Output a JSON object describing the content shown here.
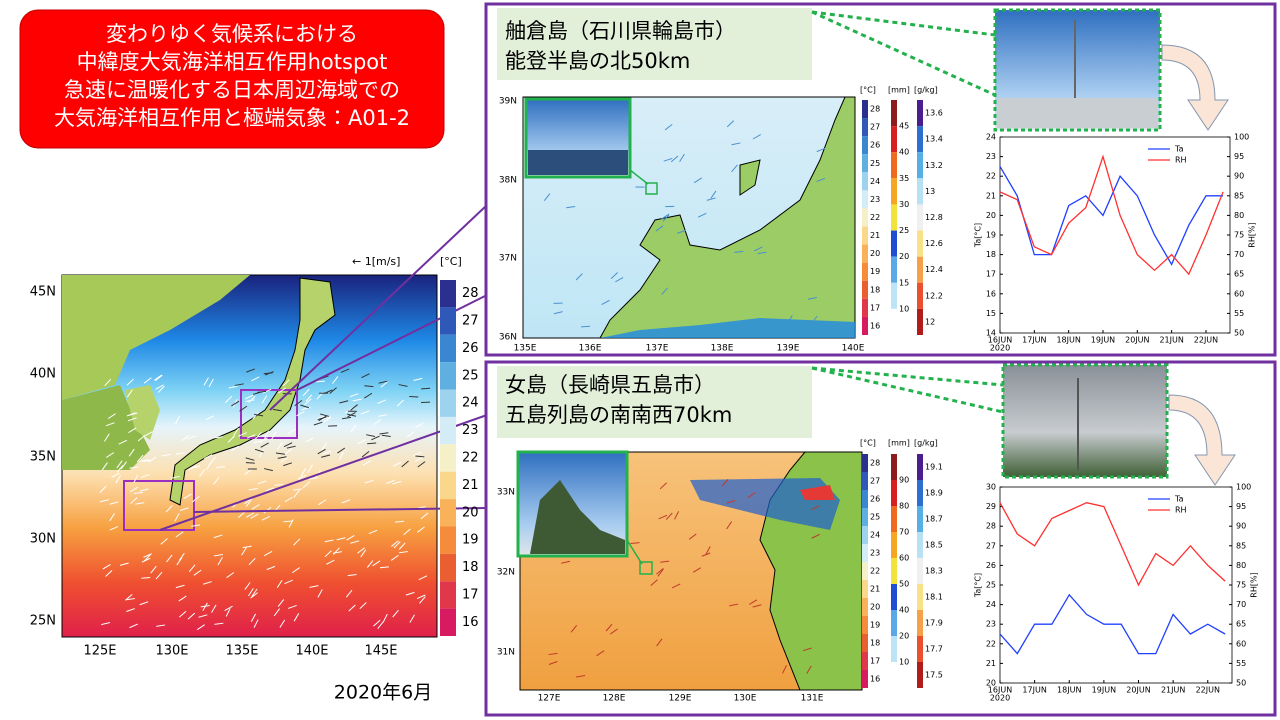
{
  "title_lines": [
    "変わりゆく気候系における",
    "中緯度大気海洋相互作用hotspot",
    "急速に温暖化する日本周辺海域での",
    "大気海洋相互作用と極端気象：A01-2"
  ],
  "main_map": {
    "vector_legend": "← 1[m/s]",
    "unit": "[°C]",
    "lat_ticks": [
      "45N",
      "40N",
      "35N",
      "30N",
      "25N"
    ],
    "lon_ticks": [
      "125E",
      "130E",
      "135E",
      "140E",
      "145E"
    ],
    "colorbar_ticks": [
      28,
      27,
      26,
      25,
      24,
      23,
      22,
      21,
      20,
      19,
      18,
      17,
      16
    ]
  },
  "date": "2020年6月",
  "panels": [
    {
      "name": "舳倉島（石川県輪島市）",
      "location": "能登半島の北50km",
      "map": {
        "lat_ticks": [
          "39N",
          "38N",
          "37N",
          "36N"
        ],
        "lon_ticks": [
          "135E",
          "136E",
          "137E",
          "138E",
          "139E",
          "140E"
        ],
        "sst_unit": "[°C]",
        "rain_unit": "[mm]",
        "q_unit": "[g/kg]",
        "sst_ticks": [
          28,
          27,
          26,
          25,
          24,
          23,
          22,
          21,
          20,
          19,
          18,
          17,
          16
        ],
        "rain_ticks": [
          45,
          40,
          35,
          30,
          25,
          20,
          15,
          10
        ],
        "q_ticks": [
          13.6,
          13.4,
          13.2,
          13,
          12.8,
          12.6,
          12.4,
          12.2,
          12
        ]
      },
      "chart": {
        "type": "line",
        "ylabel": "Ta[°C]",
        "y2label": "RH[%]",
        "x": [
          16,
          16.5,
          17,
          17.5,
          18,
          18.5,
          19,
          19.5,
          20,
          20.5,
          21,
          21.5,
          22,
          22.5
        ],
        "xlim": [
          16,
          22.7
        ],
        "xticks": [
          {
            "value": 16,
            "label": "16JUN"
          },
          {
            "value": 17,
            "label": "17JUN"
          },
          {
            "value": 18,
            "label": "18JUN"
          },
          {
            "value": 19,
            "label": "19JUN"
          },
          {
            "value": 20,
            "label": "20JUN"
          },
          {
            "value": 21,
            "label": "21JUN"
          },
          {
            "value": 22,
            "label": "22JUN"
          }
        ],
        "year": "2020",
        "ylim": [
          14,
          24
        ],
        "yticks": [
          14,
          15,
          16,
          17,
          18,
          19,
          20,
          21,
          22,
          23,
          24
        ],
        "y2lim": [
          50,
          100
        ],
        "y2ticks": [
          50,
          55,
          60,
          65,
          70,
          75,
          80,
          85,
          90,
          95,
          100
        ],
        "series": [
          {
            "name": "Ta",
            "color": "#2040ff",
            "values": [
              22.5,
              21,
              18,
              18,
              20.5,
              21,
              20,
              22,
              21,
              19,
              17.5,
              19.5,
              21,
              21
            ]
          },
          {
            "name": "RH",
            "color": "#ff3030",
            "axis": "y2",
            "values": [
              86,
              84,
              72,
              70,
              78,
              82,
              95,
              80,
              70,
              66,
              70,
              65,
              75,
              86
            ]
          }
        ]
      }
    },
    {
      "name": "女島（長崎県五島市）",
      "location": "五島列島の南南西70km",
      "map": {
        "lat_ticks": [
          "33N",
          "32N",
          "31N"
        ],
        "lon_ticks": [
          "127E",
          "128E",
          "129E",
          "130E",
          "131E"
        ],
        "sst_unit": "[°C]",
        "rain_unit": "[mm]",
        "q_unit": "[g/kg]",
        "sst_ticks": [
          28,
          27,
          26,
          25,
          24,
          23,
          22,
          21,
          20,
          19,
          18,
          17,
          16
        ],
        "rain_ticks": [
          90,
          80,
          70,
          60,
          50,
          40,
          20,
          10
        ],
        "q_ticks": [
          19.1,
          18.9,
          18.7,
          18.5,
          18.3,
          18.1,
          17.9,
          17.7,
          17.5
        ]
      },
      "chart": {
        "type": "line",
        "ylabel": "Ta[°C]",
        "y2label": "RH[%]",
        "x": [
          16,
          16.5,
          17,
          17.5,
          18,
          18.5,
          19,
          19.5,
          20,
          20.5,
          21,
          21.5,
          22,
          22.5
        ],
        "xlim": [
          16,
          22.7
        ],
        "xticks": [
          {
            "value": 16,
            "label": "16JUN"
          },
          {
            "value": 17,
            "label": "17JUN"
          },
          {
            "value": 18,
            "label": "18JUN"
          },
          {
            "value": 19,
            "label": "19JUN"
          },
          {
            "value": 20,
            "label": "20JUN"
          },
          {
            "value": 21,
            "label": "21JUN"
          },
          {
            "value": 22,
            "label": "22JUN"
          }
        ],
        "year": "2020",
        "ylim": [
          20,
          30
        ],
        "yticks": [
          20,
          21,
          22,
          23,
          24,
          25,
          26,
          27,
          28,
          29,
          30
        ],
        "y2lim": [
          50,
          100
        ],
        "y2ticks": [
          50,
          55,
          60,
          65,
          70,
          75,
          80,
          85,
          90,
          95,
          100
        ],
        "series": [
          {
            "name": "Ta",
            "color": "#2040ff",
            "values": [
              22.5,
              21.5,
              23,
              23,
              24.5,
              23.5,
              23,
              23,
              21.5,
              21.5,
              23.5,
              22.5,
              23,
              22.5
            ]
          },
          {
            "name": "RH",
            "color": "#ff3030",
            "axis": "y2",
            "values": [
              96,
              88,
              85,
              92,
              94,
              96,
              95,
              85,
              75,
              83,
              80,
              85,
              80,
              76
            ]
          }
        ]
      }
    }
  ]
}
